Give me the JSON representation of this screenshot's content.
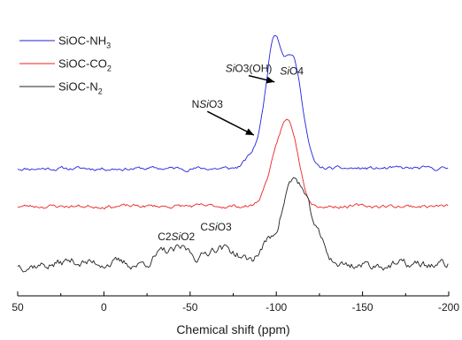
{
  "chart_data": {
    "type": "line",
    "xlabel": "Chemical shift (ppm)",
    "ylabel": "",
    "xlim": [
      50,
      -200
    ],
    "x_ticks": [
      {
        "value": 50,
        "label": "50"
      },
      {
        "value": 0,
        "label": "0"
      },
      {
        "value": -50,
        "label": "-50"
      },
      {
        "value": -100,
        "label": "-100"
      },
      {
        "value": -150,
        "label": "-150"
      },
      {
        "value": -200,
        "label": "-200"
      }
    ],
    "x_minor_ticks": [
      25,
      -25,
      -75,
      -125,
      -175
    ],
    "y_axis_shown": false,
    "grid": false,
    "legend_position": "top-left",
    "series": [
      {
        "name": "SiOC-NH",
        "name_sub": "3",
        "color": "#2222dd",
        "baseline": 0.78,
        "noise": 0.012,
        "seed": 11,
        "peaks": [
          [
            -84,
            3.5,
            0.06
          ],
          [
            -93,
            4.5,
            0.28
          ],
          [
            -99,
            4.0,
            0.86
          ],
          [
            -109,
            5.0,
            0.87
          ],
          [
            -116,
            3.5,
            0.12
          ]
        ]
      },
      {
        "name": "SiOC-CO",
        "name_sub": "2",
        "color": "#ee2222",
        "baseline": 0.475,
        "noise": 0.012,
        "seed": 23,
        "peaks": [
          [
            -96,
            4.0,
            0.12
          ],
          [
            -106,
            6.0,
            0.68
          ],
          [
            -112,
            3.5,
            0.05
          ]
        ]
      },
      {
        "name": "SiOC-N",
        "name_sub": "2",
        "color": "#222222",
        "baseline": 0.0,
        "noise": 0.03,
        "seed": 37,
        "peaks": [
          [
            18,
            6,
            0.03
          ],
          [
            -2,
            7,
            0.02
          ],
          [
            -35,
            6,
            0.095
          ],
          [
            -47,
            5,
            0.11
          ],
          [
            -65,
            6,
            0.14
          ],
          [
            -76,
            5,
            0.075
          ],
          [
            -95,
            5,
            0.17
          ],
          [
            -107,
            5,
            0.5
          ],
          [
            -115,
            5,
            0.44
          ],
          [
            -124,
            5,
            0.18
          ]
        ]
      }
    ],
    "annotations": [
      {
        "parts": [
          {
            "t": "Si",
            "i": true
          },
          {
            "t": "O3(OH)",
            "i": false
          }
        ],
        "x": -84,
        "y": 1.56,
        "anchor": "middle",
        "arrow_to": [
          -99,
          1.48
        ]
      },
      {
        "parts": [
          {
            "t": "Si",
            "i": true
          },
          {
            "t": "O4",
            "i": false
          }
        ],
        "x": -109,
        "y": 1.54,
        "anchor": "middle"
      },
      {
        "parts": [
          {
            "t": "N",
            "i": false
          },
          {
            "t": "Si",
            "i": true
          },
          {
            "t": "O3",
            "i": false
          }
        ],
        "x": -60,
        "y": 1.27,
        "anchor": "middle",
        "arrow_to": [
          -87,
          1.05
        ]
      },
      {
        "parts": [
          {
            "t": "C",
            "i": false
          },
          {
            "t": "Si",
            "i": true
          },
          {
            "t": "O3",
            "i": false
          }
        ],
        "x": -65,
        "y": 0.28,
        "anchor": "middle"
      },
      {
        "parts": [
          {
            "t": "C2",
            "i": false
          },
          {
            "t": "Si",
            "i": true
          },
          {
            "t": "O2",
            "i": false
          }
        ],
        "x": -42,
        "y": 0.2,
        "anchor": "middle"
      }
    ]
  }
}
